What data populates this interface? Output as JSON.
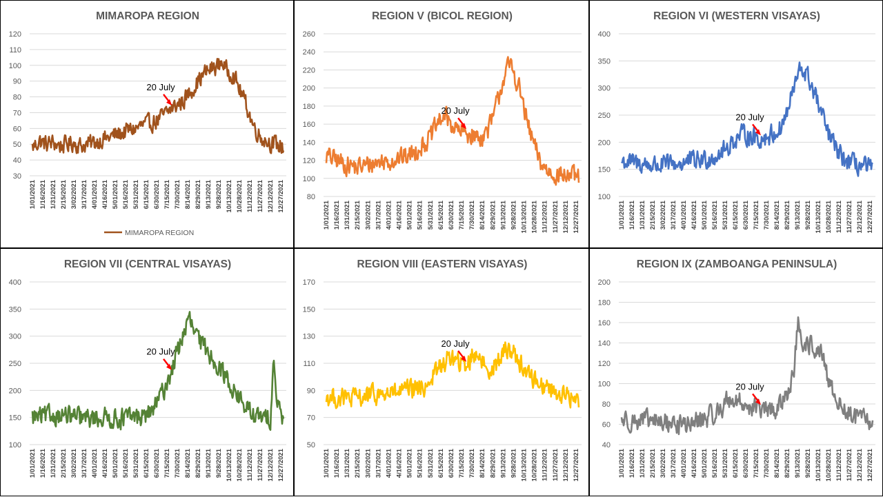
{
  "chart_data": [
    {
      "type": "line",
      "title": "MIMAROPA REGION",
      "color": "#a0521c",
      "ylim": [
        30,
        120
      ],
      "yticks": [
        30,
        40,
        50,
        60,
        70,
        80,
        90,
        100,
        110,
        120
      ],
      "xtick_labels": [
        "1/01/2021",
        "1/16/2021",
        "1/31/2021",
        "2/15/2021",
        "3/02/2021",
        "3/17/2021",
        "4/01/2021",
        "4/16/2021",
        "5/01/2021",
        "5/16/2021",
        "5/31/2021",
        "6/15/2021",
        "6/30/2021",
        "7/15/2021",
        "7/30/2021",
        "8/14/2021",
        "8/29/2021",
        "9/13/2021",
        "9/28/2021",
        "10/13/2021",
        "10/28/2021",
        "11/12/2021",
        "11/27/2021",
        "12/12/2021",
        "12/27/2021"
      ],
      "legend": "MIMAROPA REGION",
      "annotation": {
        "text": "20 July",
        "date_index": 200
      },
      "grid": true,
      "series": [
        {
          "name": "MIMAROPA REGION",
          "x_start": "1/01/2021",
          "x_end": "12/31/2021",
          "points": [
            [
              0,
              48
            ],
            [
              10,
              52
            ],
            [
              20,
              50
            ],
            [
              30,
              51
            ],
            [
              40,
              49
            ],
            [
              50,
              50
            ],
            [
              60,
              51
            ],
            [
              70,
              49
            ],
            [
              80,
              50
            ],
            [
              90,
              51
            ],
            [
              100,
              53
            ],
            [
              110,
              54
            ],
            [
              120,
              56
            ],
            [
              130,
              57
            ],
            [
              140,
              59
            ],
            [
              150,
              60
            ],
            [
              160,
              62
            ],
            [
              170,
              63
            ],
            [
              180,
              65
            ],
            [
              190,
              68
            ],
            [
              200,
              72
            ],
            [
              210,
              75
            ],
            [
              220,
              78
            ],
            [
              230,
              84
            ],
            [
              240,
              90
            ],
            [
              250,
              95
            ],
            [
              260,
              98
            ],
            [
              270,
              100
            ],
            [
              275,
              103
            ],
            [
              280,
              97
            ],
            [
              290,
              95
            ],
            [
              300,
              85
            ],
            [
              310,
              75
            ],
            [
              320,
              62
            ],
            [
              330,
              55
            ],
            [
              340,
              52
            ],
            [
              350,
              50
            ],
            [
              364,
              48
            ]
          ]
        }
      ]
    },
    {
      "type": "line",
      "title": "REGION V (BICOL REGION)",
      "color": "#ed7d31",
      "ylim": [
        80,
        260
      ],
      "yticks": [
        80,
        100,
        120,
        140,
        160,
        180,
        200,
        220,
        240,
        260
      ],
      "xtick_labels": [
        "1/01/2021",
        "1/16/2021",
        "1/31/2021",
        "2/15/2021",
        "3/02/2021",
        "3/17/2021",
        "4/01/2021",
        "4/16/2021",
        "5/01/2021",
        "5/16/2021",
        "5/31/2021",
        "6/15/2021",
        "6/30/2021",
        "7/15/2021",
        "7/30/2021",
        "8/14/2021",
        "8/29/2021",
        "9/13/2021",
        "9/28/2021",
        "10/13/2021",
        "10/28/2021",
        "11/12/2021",
        "11/27/2021",
        "12/12/2021",
        "12/27/2021"
      ],
      "annotation": {
        "text": "20 July",
        "date_index": 200
      },
      "grid": true,
      "series": [
        {
          "x_start": "1/01/2021",
          "x_end": "12/31/2021",
          "points": [
            [
              0,
              125
            ],
            [
              15,
              120
            ],
            [
              30,
              115
            ],
            [
              45,
              112
            ],
            [
              60,
              115
            ],
            [
              75,
              118
            ],
            [
              90,
              120
            ],
            [
              105,
              122
            ],
            [
              120,
              125
            ],
            [
              135,
              135
            ],
            [
              150,
              145
            ],
            [
              160,
              160
            ],
            [
              170,
              170
            ],
            [
              180,
              160
            ],
            [
              190,
              152
            ],
            [
              200,
              150
            ],
            [
              210,
              148
            ],
            [
              220,
              145
            ],
            [
              230,
              150
            ],
            [
              240,
              165
            ],
            [
              250,
              195
            ],
            [
              255,
              210
            ],
            [
              260,
              220
            ],
            [
              265,
              225
            ],
            [
              270,
              218
            ],
            [
              280,
              195
            ],
            [
              290,
              160
            ],
            [
              300,
              135
            ],
            [
              310,
              115
            ],
            [
              320,
              108
            ],
            [
              335,
              104
            ],
            [
              350,
              103
            ],
            [
              364,
              100
            ]
          ]
        }
      ]
    },
    {
      "type": "line",
      "title": "REGION VI (WESTERN VISAYAS)",
      "color": "#4472c4",
      "ylim": [
        100,
        400
      ],
      "yticks": [
        100,
        150,
        200,
        250,
        300,
        350,
        400
      ],
      "xtick_labels": [
        "1/01/2021",
        "1/16/2021",
        "1/31/2021",
        "2/15/2021",
        "3/02/2021",
        "3/17/2021",
        "4/01/2021",
        "4/16/2021",
        "5/01/2021",
        "5/16/2021",
        "5/31/2021",
        "6/15/2021",
        "6/30/2021",
        "7/15/2021",
        "7/30/2021",
        "8/14/2021",
        "8/29/2021",
        "9/13/2021",
        "9/28/2021",
        "10/13/2021",
        "10/28/2021",
        "11/12/2021",
        "11/27/2021",
        "12/12/2021",
        "12/27/2021"
      ],
      "annotation": {
        "text": "20 July",
        "date_index": 200
      },
      "grid": true,
      "series": [
        {
          "x_start": "1/01/2021",
          "x_end": "12/31/2021",
          "points": [
            [
              0,
              165
            ],
            [
              15,
              162
            ],
            [
              30,
              160
            ],
            [
              45,
              158
            ],
            [
              60,
              157
            ],
            [
              75,
              160
            ],
            [
              90,
              162
            ],
            [
              105,
              165
            ],
            [
              120,
              168
            ],
            [
              135,
              175
            ],
            [
              150,
              185
            ],
            [
              160,
              200
            ],
            [
              170,
              210
            ],
            [
              180,
              215
            ],
            [
              190,
              210
            ],
            [
              200,
              205
            ],
            [
              210,
              210
            ],
            [
              220,
              215
            ],
            [
              230,
              225
            ],
            [
              240,
              255
            ],
            [
              250,
              300
            ],
            [
              255,
              320
            ],
            [
              260,
              335
            ],
            [
              265,
              330
            ],
            [
              270,
              320
            ],
            [
              280,
              290
            ],
            [
              290,
              250
            ],
            [
              300,
              215
            ],
            [
              310,
              190
            ],
            [
              320,
              170
            ],
            [
              335,
              160
            ],
            [
              350,
              155
            ],
            [
              364,
              150
            ]
          ]
        }
      ]
    },
    {
      "type": "line",
      "title": "REGION VII (CENTRAL VISAYAS)",
      "color": "#548235",
      "ylim": [
        100,
        400
      ],
      "yticks": [
        100,
        150,
        200,
        250,
        300,
        350,
        400
      ],
      "xtick_labels": [
        "1/01/2021",
        "1/16/2021",
        "1/31/2021",
        "2/15/2021",
        "3/02/2021",
        "3/17/2021",
        "4/01/2021",
        "4/16/2021",
        "5/01/2021",
        "5/16/2021",
        "5/31/2021",
        "6/15/2021",
        "6/30/2021",
        "7/15/2021",
        "7/30/2021",
        "8/14/2021",
        "8/29/2021",
        "9/13/2021",
        "9/28/2021",
        "10/13/2021",
        "10/28/2021",
        "11/12/2021",
        "11/27/2021",
        "12/12/2021",
        "12/27/2021"
      ],
      "annotation": {
        "text": "20 July",
        "date_index": 200
      },
      "grid": true,
      "series": [
        {
          "x_start": "1/01/2021",
          "x_end": "12/31/2021",
          "points": [
            [
              0,
              150
            ],
            [
              20,
              152
            ],
            [
              40,
              155
            ],
            [
              60,
              150
            ],
            [
              80,
              148
            ],
            [
              100,
              150
            ],
            [
              120,
              148
            ],
            [
              140,
              150
            ],
            [
              160,
              152
            ],
            [
              170,
              158
            ],
            [
              180,
              175
            ],
            [
              190,
              200
            ],
            [
              200,
              230
            ],
            [
              210,
              270
            ],
            [
              220,
              310
            ],
            [
              228,
              330
            ],
            [
              235,
              305
            ],
            [
              245,
              285
            ],
            [
              255,
              270
            ],
            [
              265,
              255
            ],
            [
              275,
              235
            ],
            [
              285,
              215
            ],
            [
              295,
              195
            ],
            [
              305,
              175
            ],
            [
              315,
              160
            ],
            [
              325,
              150
            ],
            [
              335,
              148
            ],
            [
              345,
              150
            ],
            [
              350,
              270
            ],
            [
              354,
              175
            ],
            [
              364,
              150
            ]
          ]
        }
      ]
    },
    {
      "type": "line",
      "title": "REGION VIII (EASTERN VISAYAS)",
      "color": "#ffc000",
      "ylim": [
        50,
        170
      ],
      "yticks": [
        50,
        70,
        90,
        110,
        130,
        150,
        170
      ],
      "xtick_labels": [
        "1/01/2021",
        "1/16/2021",
        "1/31/2021",
        "2/15/2021",
        "3/02/2021",
        "3/17/2021",
        "4/01/2021",
        "4/16/2021",
        "5/01/2021",
        "5/16/2021",
        "5/31/2021",
        "6/15/2021",
        "6/30/2021",
        "7/15/2021",
        "7/30/2021",
        "8/14/2021",
        "8/29/2021",
        "9/13/2021",
        "9/28/2021",
        "10/13/2021",
        "10/28/2021",
        "11/12/2021",
        "11/27/2021",
        "12/12/2021",
        "12/27/2021"
      ],
      "annotation": {
        "text": "20 July",
        "date_index": 200
      },
      "grid": true,
      "series": [
        {
          "x_start": "1/01/2021",
          "x_end": "12/31/2021",
          "points": [
            [
              0,
              85
            ],
            [
              20,
              84
            ],
            [
              40,
              84
            ],
            [
              60,
              86
            ],
            [
              80,
              87
            ],
            [
              100,
              88
            ],
            [
              120,
              90
            ],
            [
              140,
              92
            ],
            [
              150,
              98
            ],
            [
              160,
              105
            ],
            [
              170,
              110
            ],
            [
              180,
              115
            ],
            [
              190,
              110
            ],
            [
              200,
              108
            ],
            [
              210,
              115
            ],
            [
              220,
              118
            ],
            [
              230,
              105
            ],
            [
              240,
              108
            ],
            [
              250,
              112
            ],
            [
              260,
              122
            ],
            [
              270,
              118
            ],
            [
              280,
              110
            ],
            [
              290,
              102
            ],
            [
              300,
              98
            ],
            [
              310,
              95
            ],
            [
              320,
              92
            ],
            [
              335,
              88
            ],
            [
              350,
              85
            ],
            [
              364,
              82
            ]
          ]
        }
      ]
    },
    {
      "type": "line",
      "title": "REGION IX (ZAMBOANGA PENINSULA)",
      "color": "#7f7f7f",
      "ylim": [
        40,
        200
      ],
      "yticks": [
        40,
        60,
        80,
        100,
        120,
        140,
        160,
        180,
        200
      ],
      "xtick_labels": [
        "1/01/2021",
        "1/16/2021",
        "1/31/2021",
        "2/15/2021",
        "3/02/2021",
        "3/17/2021",
        "4/01/2021",
        "4/16/2021",
        "5/01/2021",
        "5/16/2021",
        "5/31/2021",
        "6/15/2021",
        "6/30/2021",
        "7/15/2021",
        "7/30/2021",
        "8/14/2021",
        "8/29/2021",
        "9/13/2021",
        "9/28/2021",
        "10/13/2021",
        "10/28/2021",
        "11/12/2021",
        "11/27/2021",
        "12/12/2021",
        "12/27/2021"
      ],
      "annotation": {
        "text": "20 July",
        "date_index": 200
      },
      "grid": true,
      "series": [
        {
          "x_start": "1/01/2021",
          "x_end": "12/31/2021",
          "points": [
            [
              0,
              65
            ],
            [
              20,
              63
            ],
            [
              40,
              63
            ],
            [
              60,
              62
            ],
            [
              80,
              60
            ],
            [
              100,
              60
            ],
            [
              120,
              65
            ],
            [
              140,
              72
            ],
            [
              155,
              85
            ],
            [
              170,
              82
            ],
            [
              185,
              78
            ],
            [
              200,
              75
            ],
            [
              215,
              72
            ],
            [
              230,
              78
            ],
            [
              240,
              92
            ],
            [
              250,
              110
            ],
            [
              256,
              165
            ],
            [
              262,
              125
            ],
            [
              270,
              140
            ],
            [
              280,
              135
            ],
            [
              290,
              128
            ],
            [
              300,
              100
            ],
            [
              310,
              88
            ],
            [
              320,
              75
            ],
            [
              335,
              68
            ],
            [
              350,
              65
            ],
            [
              364,
              60
            ]
          ]
        }
      ]
    }
  ]
}
